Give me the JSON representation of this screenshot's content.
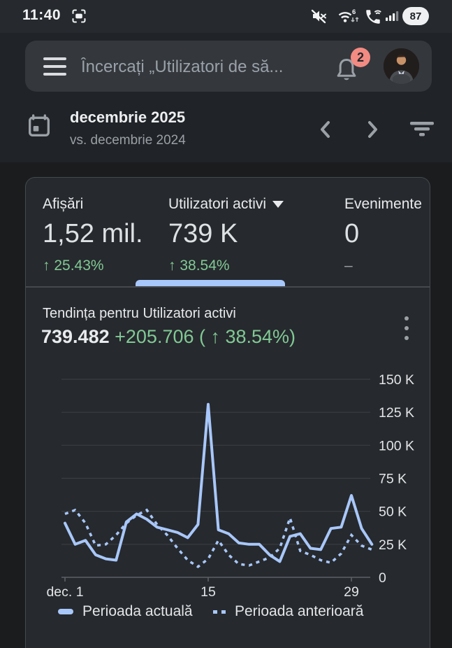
{
  "status_bar": {
    "time": "11:40",
    "battery": "87"
  },
  "header": {
    "search_placeholder": "Încercați „Utilizatori de să...",
    "notification_count": "2"
  },
  "date_selector": {
    "period": "decembrie 2025",
    "comparison": "vs. decembrie 2024"
  },
  "metrics": {
    "cards": [
      {
        "label": "Afișări",
        "value": "1,52 mil.",
        "delta": "↑ 25.43%"
      },
      {
        "label": "Utilizatori activi",
        "value": "739 K",
        "delta": "↑ 38.54%"
      },
      {
        "label": "Evenimente",
        "value": "0",
        "delta": "–"
      }
    ]
  },
  "trend": {
    "title": "Tendința pentru Utilizatori activi",
    "total": "739.482",
    "delta": "+205.706 ( ↑ 38.54%)"
  },
  "chart_data": {
    "type": "line",
    "x": [
      1,
      2,
      3,
      4,
      5,
      6,
      7,
      8,
      9,
      10,
      11,
      12,
      13,
      14,
      15,
      16,
      17,
      18,
      19,
      20,
      21,
      22,
      23,
      24,
      25,
      26,
      27,
      28,
      29,
      30,
      31
    ],
    "series": [
      {
        "name": "Perioada actuală",
        "style": "solid",
        "values": [
          41,
          25,
          28,
          17,
          14,
          13,
          42,
          48,
          44,
          38,
          36,
          34,
          30,
          40,
          131,
          36,
          33,
          26,
          25,
          25,
          17,
          12,
          31,
          33,
          22,
          21,
          37,
          38,
          62,
          37,
          25
        ]
      },
      {
        "name": "Perioada anterioară",
        "style": "dotted",
        "values": [
          48,
          51,
          41,
          24,
          25,
          32,
          41,
          47,
          51,
          40,
          32,
          22,
          13,
          8,
          14,
          28,
          17,
          10,
          9,
          12,
          15,
          22,
          45,
          20,
          17,
          13,
          11,
          18,
          32,
          24,
          21
        ]
      }
    ],
    "unit": "K",
    "ylim": [
      0,
      150
    ],
    "y_ticks": [
      {
        "label": "0",
        "value": 0
      },
      {
        "label": "25 K",
        "value": 25
      },
      {
        "label": "50 K",
        "value": 50
      },
      {
        "label": "75 K",
        "value": 75
      },
      {
        "label": "100 K",
        "value": 100
      },
      {
        "label": "125 K",
        "value": 125
      },
      {
        "label": "150 K",
        "value": 150
      }
    ],
    "x_ticks": [
      {
        "label": "dec. 1",
        "day": 1
      },
      {
        "label": "15",
        "day": 15
      },
      {
        "label": "29",
        "day": 29
      }
    ],
    "grid": true,
    "legend_position": "bottom",
    "title": "Tendința pentru Utilizatori activi"
  },
  "legend": {
    "current": "Perioada actuală",
    "previous": "Perioada anterioară"
  },
  "colors": {
    "accent_blue": "#a8c7fa",
    "positive_green": "#81c995",
    "badge_red": "#f28b82"
  }
}
